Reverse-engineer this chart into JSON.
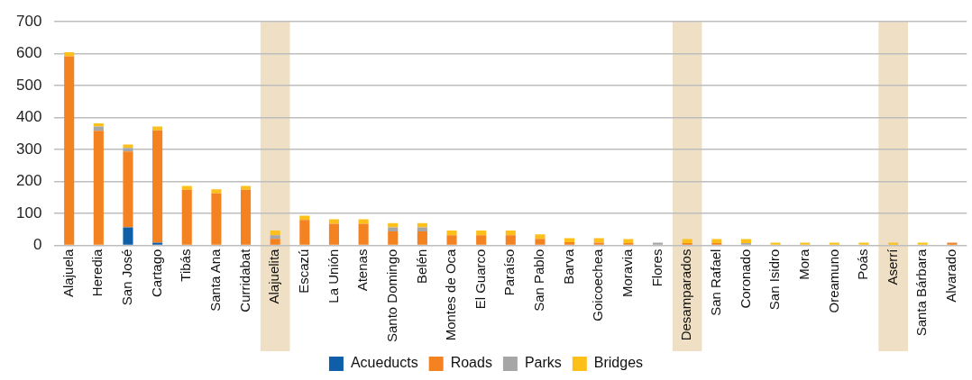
{
  "chart_data": {
    "type": "bar",
    "stacked": true,
    "categories": [
      "Alajuela",
      "Heredia",
      "San José",
      "Cartago",
      "Tibás",
      "Santa Ana",
      "Curridabat",
      "Alajuelita",
      "Escazú",
      "La Unión",
      "Atenas",
      "Santo Domingo",
      "Belén",
      "Montes de Oca",
      "El Guarco",
      "Paraíso",
      "San Pablo",
      "Barva",
      "Goicoechea",
      "Moravia",
      "Flores",
      "Desamparados",
      "San Rafael",
      "Coronado",
      "San Isidro",
      "Mora",
      "Oreamuno",
      "Poás",
      "Aserrí",
      "Santa Bárbara",
      "Alvarado"
    ],
    "series": [
      {
        "name": "Acueducts",
        "color": "#0f5fa8",
        "values": [
          0,
          0,
          57,
          9,
          0,
          0,
          0,
          0,
          0,
          0,
          0,
          0,
          0,
          0,
          0,
          0,
          0,
          0,
          0,
          0,
          0,
          0,
          0,
          0,
          0,
          0,
          0,
          0,
          0,
          0,
          0
        ]
      },
      {
        "name": "Roads",
        "color": "#f58220",
        "values": [
          592,
          359,
          237,
          351,
          174,
          163,
          174,
          21,
          80,
          68,
          68,
          44,
          44,
          32,
          32,
          32,
          21,
          10,
          9,
          7,
          0,
          7,
          7,
          0,
          0,
          0,
          0,
          0,
          0,
          0,
          9
        ]
      },
      {
        "name": "Parks",
        "color": "#a6a6a6",
        "values": [
          0,
          13,
          11,
          null,
          0,
          0,
          0,
          11,
          0,
          0,
          0,
          13,
          13,
          0,
          0,
          0,
          0,
          0,
          0,
          0,
          9,
          0,
          0,
          7,
          0,
          0,
          0,
          0,
          0,
          0,
          0
        ]
      },
      {
        "name": "Bridges",
        "color": "#fdbf19",
        "values": [
          13,
          10,
          11,
          12,
          12,
          13,
          12,
          15,
          13,
          14,
          14,
          13,
          13,
          15,
          15,
          15,
          14,
          13,
          14,
          13,
          0,
          13,
          13,
          13,
          9,
          9,
          9,
          9,
          9,
          9,
          0
        ]
      }
    ],
    "ylim": [
      0,
      700
    ],
    "yticks": [
      0,
      100,
      200,
      300,
      400,
      500,
      600,
      700
    ],
    "grid": "y",
    "legend": "bottom",
    "bands": [
      {
        "axis": "x",
        "from": "Alajuelita",
        "to": "Alajuelita",
        "color": "#efdfc4"
      },
      {
        "axis": "x",
        "from": "Desamparados",
        "to": "Desamparados",
        "color": "#efdfc4"
      },
      {
        "axis": "x",
        "from": "Aserrí",
        "to": "Aserrí",
        "color": "#efdfc4"
      }
    ]
  }
}
